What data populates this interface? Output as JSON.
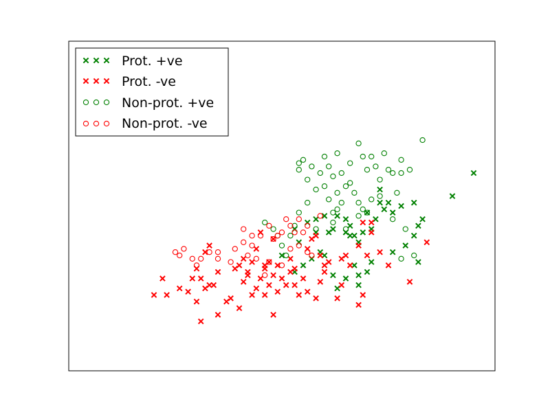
{
  "chart_data": {
    "type": "scatter",
    "xlim": [
      0,
      10
    ],
    "ylim": [
      0,
      10
    ],
    "xticks": [],
    "yticks": [],
    "grid": false,
    "legend_position": "top-left",
    "series": [
      {
        "name": "Prot. +ve",
        "marker": "x",
        "color": "#008000",
        "points": [
          [
            5.3,
            4.3
          ],
          [
            5.6,
            4.5
          ],
          [
            5.8,
            4.2
          ],
          [
            6.0,
            4.7
          ],
          [
            6.2,
            4.3
          ],
          [
            6.5,
            4.2
          ],
          [
            5.9,
            3.6
          ],
          [
            6.7,
            3.2
          ],
          [
            7.3,
            5.1
          ],
          [
            7.5,
            5.1
          ],
          [
            7.8,
            5.0
          ],
          [
            8.1,
            5.1
          ],
          [
            9.0,
            5.3
          ],
          [
            9.5,
            6.0
          ],
          [
            8.3,
            4.6
          ],
          [
            8.2,
            4.4
          ],
          [
            7.6,
            3.6
          ],
          [
            7.0,
            3.0
          ],
          [
            6.8,
            2.6
          ],
          [
            6.5,
            2.8
          ],
          [
            6.2,
            2.9
          ],
          [
            6.0,
            3.5
          ],
          [
            8.1,
            4.1
          ],
          [
            7.9,
            3.8
          ],
          [
            6.8,
            3.9
          ],
          [
            6.9,
            4.2
          ],
          [
            7.6,
            4.8
          ],
          [
            7.4,
            4.9
          ],
          [
            7.2,
            4.6
          ],
          [
            5.4,
            3.9
          ],
          [
            6.5,
            4.6
          ],
          [
            5.7,
            3.4
          ],
          [
            5.0,
            3.5
          ],
          [
            5.5,
            3.2
          ],
          [
            6.8,
            2.9
          ],
          [
            7.1,
            3.3
          ],
          [
            8.2,
            3.3
          ],
          [
            6.6,
            4.1
          ],
          [
            6.1,
            4.2
          ],
          [
            6.3,
            4.7
          ],
          [
            7.0,
            4.8
          ],
          [
            7.3,
            5.5
          ],
          [
            5.3,
            3.0
          ],
          [
            6.3,
            2.5
          ],
          [
            6.7,
            4.1
          ],
          [
            7.1,
            4.3
          ],
          [
            5.8,
            4.6
          ],
          [
            6.6,
            4.4
          ]
        ]
      },
      {
        "name": "Prot. -ve",
        "marker": "x",
        "color": "#ff0000",
        "points": [
          [
            2.3,
            2.3
          ],
          [
            2.9,
            2.8
          ],
          [
            3.2,
            2.5
          ],
          [
            3.1,
            2.8
          ],
          [
            3.3,
            2.6
          ],
          [
            3.0,
            3.1
          ],
          [
            3.2,
            3.6
          ],
          [
            3.3,
            3.8
          ],
          [
            3.5,
            3.0
          ],
          [
            3.4,
            2.6
          ],
          [
            3.7,
            2.1
          ],
          [
            3.5,
            1.7
          ],
          [
            3.9,
            3.1
          ],
          [
            4.0,
            3.2
          ],
          [
            4.2,
            3.0
          ],
          [
            4.1,
            2.7
          ],
          [
            4.3,
            3.3
          ],
          [
            4.4,
            3.7
          ],
          [
            4.5,
            4.2
          ],
          [
            4.4,
            2.5
          ],
          [
            4.6,
            2.3
          ],
          [
            4.5,
            2.8
          ],
          [
            4.7,
            2.6
          ],
          [
            4.8,
            2.9
          ],
          [
            4.9,
            3.2
          ],
          [
            4.7,
            3.3
          ],
          [
            4.6,
            3.1
          ],
          [
            5.0,
            2.8
          ],
          [
            5.1,
            2.6
          ],
          [
            5.2,
            3.0
          ],
          [
            5.3,
            3.1
          ],
          [
            5.2,
            3.4
          ],
          [
            5.6,
            3.7
          ],
          [
            5.8,
            4.1
          ],
          [
            6.1,
            3.3
          ],
          [
            6.4,
            3.4
          ],
          [
            5.5,
            2.8
          ],
          [
            5.6,
            2.4
          ],
          [
            5.8,
            2.2
          ],
          [
            6.0,
            3.0
          ],
          [
            6.4,
            2.6
          ],
          [
            6.6,
            3.2
          ],
          [
            6.8,
            3.8
          ],
          [
            6.9,
            4.5
          ],
          [
            7.0,
            3.5
          ],
          [
            7.1,
            4.2
          ],
          [
            7.3,
            3.6
          ],
          [
            7.5,
            3.2
          ],
          [
            6.9,
            2.3
          ],
          [
            6.8,
            2.0
          ],
          [
            6.5,
            3.5
          ],
          [
            8.0,
            2.7
          ],
          [
            8.4,
            3.9
          ],
          [
            4.3,
            2.3
          ],
          [
            4.6,
            3.2
          ],
          [
            4.9,
            2.4
          ],
          [
            5.4,
            2.3
          ],
          [
            3.0,
            2.1
          ],
          [
            4.2,
            2.9
          ],
          [
            2.8,
            2.4
          ],
          [
            3.1,
            1.5
          ],
          [
            4.0,
            1.9
          ],
          [
            4.8,
            1.7
          ],
          [
            2.6,
            2.5
          ],
          [
            2.0,
            2.3
          ],
          [
            2.2,
            2.8
          ],
          [
            3.8,
            2.2
          ],
          [
            5.7,
            4.0
          ],
          [
            6.0,
            3.2
          ],
          [
            5.9,
            3.5
          ],
          [
            7.1,
            4.5
          ],
          [
            5.9,
            2.7
          ],
          [
            5.3,
            2.6
          ],
          [
            6.3,
            2.2
          ],
          [
            4.1,
            3.4
          ],
          [
            4.8,
            4.0
          ]
        ]
      },
      {
        "name": "Non-prot. +ve",
        "marker": "o",
        "color": "#008000",
        "points": [
          [
            5.4,
            6.3
          ],
          [
            5.5,
            6.4
          ],
          [
            5.4,
            6.1
          ],
          [
            5.6,
            5.8
          ],
          [
            5.7,
            6.2
          ],
          [
            5.9,
            6.0
          ],
          [
            6.0,
            6.5
          ],
          [
            6.1,
            6.2
          ],
          [
            6.2,
            5.9
          ],
          [
            6.3,
            6.6
          ],
          [
            6.4,
            6.0
          ],
          [
            6.5,
            5.6
          ],
          [
            6.6,
            6.3
          ],
          [
            6.8,
            6.9
          ],
          [
            6.9,
            6.5
          ],
          [
            7.0,
            6.1
          ],
          [
            7.1,
            6.5
          ],
          [
            7.2,
            6.2
          ],
          [
            7.3,
            5.8
          ],
          [
            7.5,
            6.1
          ],
          [
            7.6,
            6.0
          ],
          [
            7.8,
            6.0
          ],
          [
            8.0,
            6.1
          ],
          [
            8.3,
            7.0
          ],
          [
            7.8,
            6.4
          ],
          [
            7.4,
            6.6
          ],
          [
            7.7,
            5.4
          ],
          [
            7.3,
            5.3
          ],
          [
            6.9,
            4.9
          ],
          [
            7.1,
            5.2
          ],
          [
            6.8,
            5.1
          ],
          [
            6.6,
            5.7
          ],
          [
            6.3,
            5.4
          ],
          [
            6.2,
            4.8
          ],
          [
            6.1,
            5.2
          ],
          [
            6.0,
            5.6
          ],
          [
            5.8,
            5.5
          ],
          [
            5.6,
            5.1
          ],
          [
            5.4,
            4.8
          ],
          [
            5.3,
            4.4
          ],
          [
            5.2,
            4.1
          ],
          [
            5.0,
            3.8
          ],
          [
            4.9,
            4.1
          ],
          [
            4.8,
            4.3
          ],
          [
            4.6,
            4.5
          ],
          [
            6.5,
            4.3
          ],
          [
            6.7,
            5.4
          ],
          [
            6.4,
            5.1
          ],
          [
            6.2,
            4.5
          ],
          [
            7.0,
            4.8
          ],
          [
            6.8,
            4.7
          ],
          [
            6.3,
            4.9
          ],
          [
            8.1,
            3.5
          ],
          [
            7.8,
            3.4
          ],
          [
            7.9,
            4.3
          ],
          [
            7.6,
            4.6
          ],
          [
            5.8,
            4.3
          ],
          [
            5.1,
            3.5
          ]
        ]
      },
      {
        "name": "Non-prot. -ve",
        "marker": "o",
        "color": "#ff0000",
        "points": [
          [
            2.6,
            3.5
          ],
          [
            2.7,
            3.7
          ],
          [
            3.1,
            3.4
          ],
          [
            3.5,
            3.6
          ],
          [
            3.9,
            3.7
          ],
          [
            4.1,
            3.9
          ],
          [
            4.5,
            4.1
          ],
          [
            4.8,
            4.0
          ],
          [
            5.0,
            4.2
          ],
          [
            5.2,
            4.4
          ],
          [
            5.4,
            4.6
          ],
          [
            5.6,
            4.4
          ],
          [
            5.9,
            4.7
          ],
          [
            5.4,
            3.8
          ],
          [
            5.7,
            3.5
          ],
          [
            5.0,
            3.2
          ],
          [
            4.7,
            3.3
          ],
          [
            4.4,
            3.4
          ],
          [
            4.2,
            3.5
          ],
          [
            3.8,
            3.3
          ],
          [
            3.5,
            3.4
          ],
          [
            3.3,
            3.6
          ],
          [
            3.0,
            3.2
          ],
          [
            2.9,
            3.4
          ],
          [
            4.6,
            2.9
          ],
          [
            5.6,
            3.6
          ],
          [
            4.1,
            4.3
          ],
          [
            4.3,
            4.1
          ],
          [
            5.2,
            3.7
          ],
          [
            4.7,
            4.4
          ],
          [
            5.5,
            4.2
          ],
          [
            4.3,
            3.8
          ],
          [
            4.9,
            4.1
          ],
          [
            5.1,
            4.6
          ],
          [
            2.5,
            3.6
          ],
          [
            5.3,
            4.2
          ]
        ]
      }
    ]
  },
  "legend": {
    "items": [
      {
        "label": "Prot. +ve"
      },
      {
        "label": "Prot. -ve"
      },
      {
        "label": "Non-prot. +ve"
      },
      {
        "label": "Non-prot. -ve"
      }
    ]
  }
}
